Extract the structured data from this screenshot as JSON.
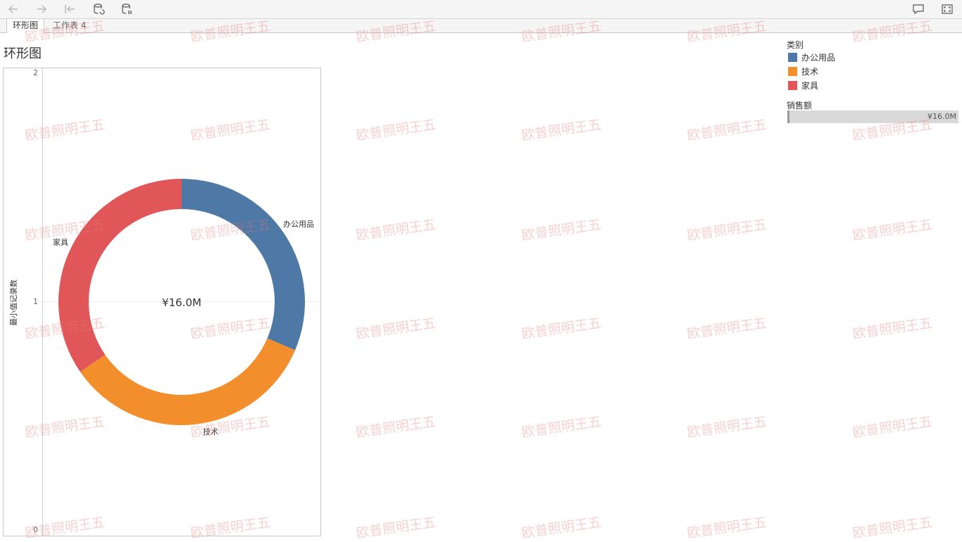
{
  "toolbar": {
    "buttons": [
      "back-icon",
      "forward-icon",
      "first-page-icon",
      "refresh-data-icon",
      "pause-data-icon",
      "comment-icon",
      "fullscreen-icon"
    ]
  },
  "tabs": [
    {
      "label": "环形图",
      "active": true
    },
    {
      "label": "工作表 4",
      "active": false
    }
  ],
  "sheet": {
    "title": "环形图"
  },
  "legend": {
    "title": "类别",
    "items": [
      {
        "label": "办公用品",
        "color": "#4e79a7"
      },
      {
        "label": "技术",
        "color": "#f28e2b"
      },
      {
        "label": "家具",
        "color": "#e15759"
      }
    ]
  },
  "size_legend": {
    "title": "销售额",
    "value": "¥16.0M"
  },
  "watermark": {
    "text": "欧普照明王五"
  },
  "chart_data": {
    "type": "pie",
    "donut": true,
    "center_label": "¥16.0M",
    "ylabel": "最小值记录数",
    "yticks": [
      "2",
      "1",
      "0"
    ],
    "ylim": [
      0,
      2
    ],
    "slices": [
      {
        "label": "办公用品",
        "value": 31.4,
        "color": "#4e79a7"
      },
      {
        "label": "技术",
        "value": 34.0,
        "color": "#f28e2b"
      },
      {
        "label": "家具",
        "value": 34.6,
        "color": "#e15759"
      }
    ]
  }
}
